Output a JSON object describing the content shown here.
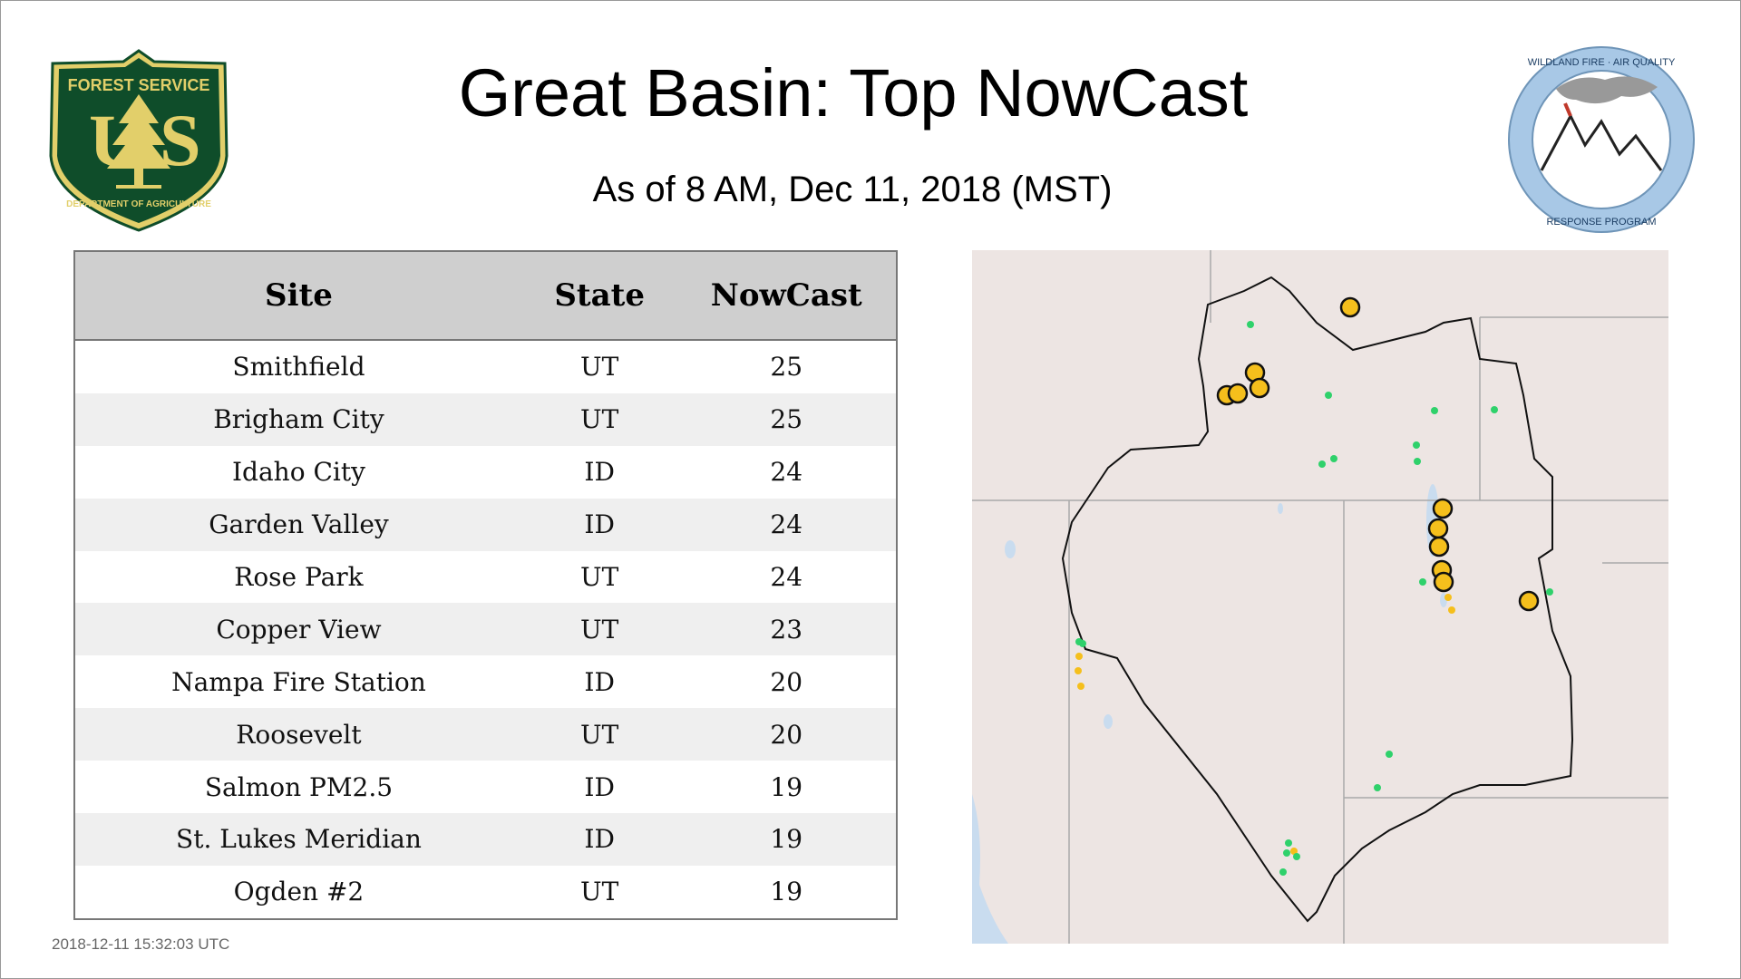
{
  "header": {
    "title": "Great Basin: Top NowCast",
    "subtitle": "As of  8 AM, Dec 11, 2018 (MST)"
  },
  "logos": {
    "forest_service": {
      "top_text": "FOREST SERVICE",
      "bottom_text": "DEPARTMENT OF AGRICULTURE",
      "letters": "U S",
      "colors": {
        "green": "#0f4d2a",
        "gold": "#e2cf6a"
      }
    },
    "wildland_fire": {
      "top_text": "WILDLAND FIRE · AIR QUALITY",
      "bottom_text": "RESPONSE PROGRAM",
      "colors": {
        "ring": "#a8c8e6",
        "smoke": "#999999"
      }
    }
  },
  "table": {
    "headers": {
      "site": "Site",
      "state": "State",
      "nowcast": "NowCast"
    },
    "rows": [
      {
        "site": "Smithfield",
        "state": "UT",
        "nowcast": "25"
      },
      {
        "site": "Brigham City",
        "state": "UT",
        "nowcast": "25"
      },
      {
        "site": "Idaho City",
        "state": "ID",
        "nowcast": "24"
      },
      {
        "site": "Garden Valley",
        "state": "ID",
        "nowcast": "24"
      },
      {
        "site": "Rose Park",
        "state": "UT",
        "nowcast": "24"
      },
      {
        "site": "Copper View",
        "state": "UT",
        "nowcast": "23"
      },
      {
        "site": "Nampa Fire Station",
        "state": "ID",
        "nowcast": "20"
      },
      {
        "site": "Roosevelt",
        "state": "UT",
        "nowcast": "20"
      },
      {
        "site": "Salmon PM2.5",
        "state": "ID",
        "nowcast": "19"
      },
      {
        "site": "St. Lukes Meridian",
        "state": "ID",
        "nowcast": "19"
      },
      {
        "site": "Ogden #2",
        "state": "UT",
        "nowcast": "19"
      }
    ]
  },
  "footer": {
    "timestamp": "2018-12-11 15:32:03 UTC"
  },
  "map": {
    "colors": {
      "background": "#ede5e3",
      "water": "#c9dcef",
      "outline": "#111111",
      "state_lines": "#a9a9a9",
      "moderate": "#f5bf1c",
      "good": "#2fd16b"
    }
  }
}
